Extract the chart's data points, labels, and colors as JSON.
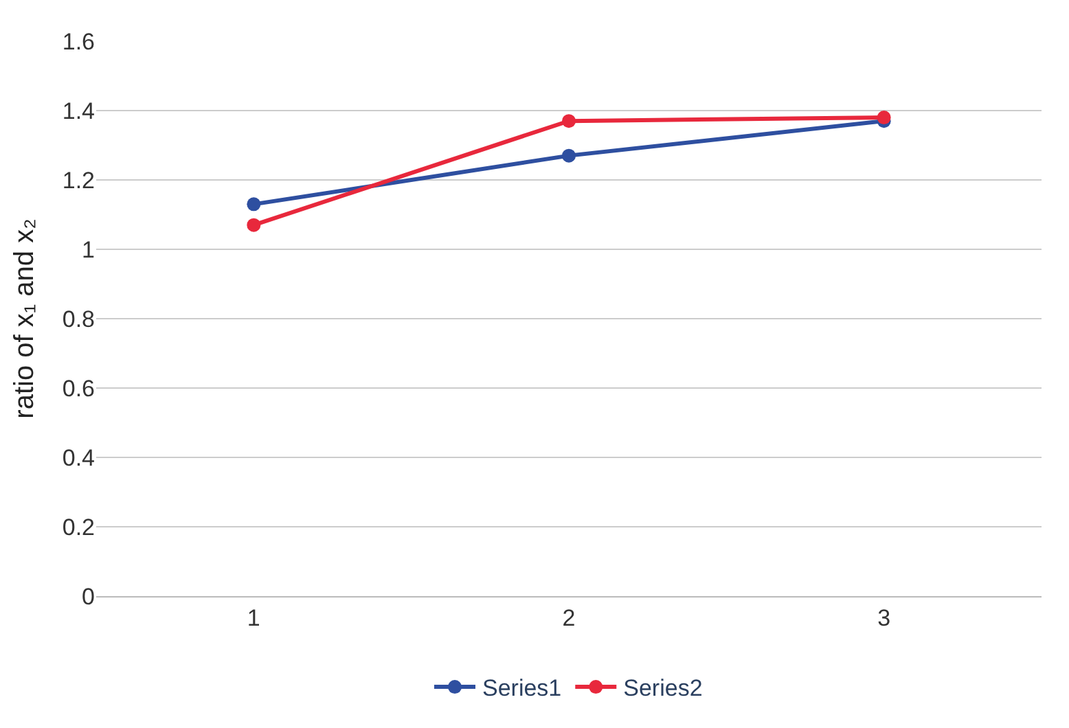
{
  "chart_data": {
    "type": "line",
    "ylabel": "ratio of x₁ and x₂",
    "categories": [
      "1",
      "2",
      "3"
    ],
    "series": [
      {
        "name": "Series1",
        "color": "#2e4fa0",
        "values": [
          1.13,
          1.27,
          1.37
        ]
      },
      {
        "name": "Series2",
        "color": "#e8283c",
        "values": [
          1.07,
          1.37,
          1.38
        ]
      }
    ],
    "ylim": [
      0,
      1.6
    ],
    "yticks": [
      {
        "value": 0,
        "label": "0"
      },
      0.2,
      0.4,
      0.6,
      0.8,
      {
        "value": 1,
        "label": "1"
      },
      1.2,
      1.4,
      1.6
    ],
    "grid": "y",
    "legend": "bottom",
    "marker": "circle",
    "line_style": "solid"
  }
}
